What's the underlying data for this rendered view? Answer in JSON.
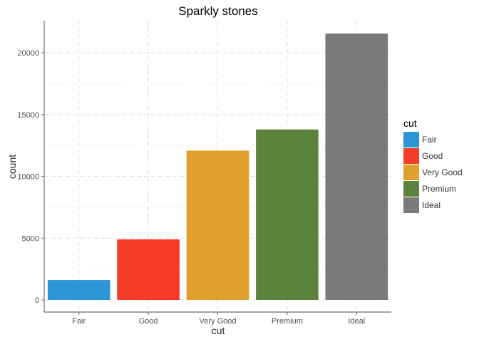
{
  "chart_data": {
    "type": "bar",
    "title": "Sparkly stones",
    "xlabel": "cut",
    "ylabel": "count",
    "categories": [
      "Fair",
      "Good",
      "Very Good",
      "Premium",
      "Ideal"
    ],
    "values": [
      1610,
      4906,
      12082,
      13791,
      21551
    ],
    "colors": [
      "#2b95d6",
      "#f63b28",
      "#dfa02e",
      "#5c833e",
      "#7a7a7a"
    ],
    "ylim": [
      0,
      22500
    ],
    "yticks": [
      0,
      5000,
      10000,
      15000,
      20000
    ],
    "grid": true,
    "legend": {
      "title": "cut",
      "position": "right",
      "items": [
        "Fair",
        "Good",
        "Very Good",
        "Premium",
        "Ideal"
      ]
    }
  }
}
